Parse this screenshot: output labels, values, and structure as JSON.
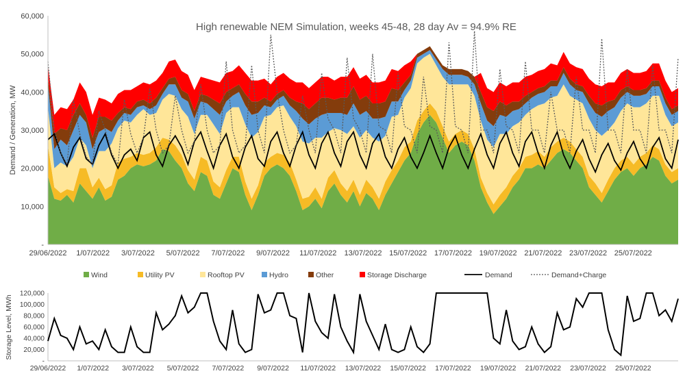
{
  "chart_data": [
    {
      "type": "area",
      "title": "High renewable NEM Simulation, weeks 45-48, 28 day Av = 94.9% RE",
      "ylabel": "Demand / Generation, MW",
      "xlabel": "",
      "ylim": [
        0,
        60000
      ],
      "yticks": [
        "-",
        "10,000",
        "20,000",
        "30,000",
        "40,000",
        "50,000",
        "60,000"
      ],
      "xticks": [
        "29/06/2022",
        "1/07/2022",
        "3/07/2022",
        "5/07/2022",
        "7/07/2022",
        "9/07/2022",
        "11/07/2022",
        "13/07/2022",
        "15/07/2022",
        "17/07/2022",
        "19/07/2022",
        "21/07/2022",
        "23/07/2022",
        "25/07/2022"
      ],
      "legend_position": "bottom",
      "grid": false,
      "series": [
        {
          "name": "Wind",
          "color": "#70ad47",
          "kind": "stacked-area",
          "values": [
            18000,
            12000,
            11500,
            13000,
            11000,
            16000,
            14000,
            12000,
            15000,
            11500,
            12500,
            17000,
            18000,
            20000,
            21000,
            20500,
            21000,
            22000,
            25000,
            24500,
            22000,
            20000,
            16000,
            14000,
            19000,
            18000,
            13000,
            12000,
            16000,
            20000,
            19000,
            13000,
            9000,
            13000,
            18000,
            20000,
            21000,
            20000,
            18000,
            14000,
            9000,
            10000,
            12000,
            9500,
            14000,
            16000,
            13000,
            11000,
            14000,
            10000,
            13500,
            12000,
            9000,
            13000,
            16000,
            19000,
            22000,
            24000,
            29000,
            32000,
            34000,
            32000,
            28000,
            24000,
            26000,
            27000,
            26000,
            22000,
            15000,
            11000,
            8000,
            10000,
            12000,
            15000,
            17000,
            20000,
            20000,
            21000,
            20000,
            22000,
            24000,
            25000,
            24000,
            22000,
            20000,
            15000,
            13000,
            11000,
            14000,
            17000,
            19000,
            20000,
            18000,
            20000,
            21000,
            23000,
            22000,
            18000,
            16000,
            17000
          ]
        },
        {
          "name": "Utility PV",
          "color": "#f6bb26",
          "kind": "stacked-area",
          "values": [
            8000,
            3000,
            2000,
            1500,
            3000,
            4000,
            6000,
            3000,
            2500,
            3000,
            3000,
            4500,
            4500,
            3000,
            3000,
            3000,
            3000,
            3500,
            3000,
            3000,
            4000,
            3500,
            3500,
            3000,
            4000,
            4000,
            3500,
            3000,
            3500,
            3000,
            4000,
            3500,
            3000,
            2500,
            3500,
            3000,
            3000,
            3500,
            3500,
            3000,
            3000,
            2500,
            3000,
            2500,
            3500,
            3500,
            3000,
            3000,
            3000,
            3000,
            3500,
            3000,
            3000,
            3500,
            3500,
            3000,
            3500,
            3000,
            3500,
            3000,
            3000,
            3000,
            3000,
            3000,
            3000,
            3000,
            3000,
            3000,
            2500,
            2500,
            2500,
            3000,
            3000,
            3000,
            3000,
            3000,
            3500,
            3500,
            3000,
            3500,
            3000,
            3000,
            3000,
            3000,
            3000,
            3000,
            3000,
            2500,
            3000,
            3000,
            3000,
            3000,
            3000,
            3000,
            3000,
            3000,
            3000,
            3000,
            3000,
            3000
          ]
        },
        {
          "name": "Rooftop PV",
          "color": "#ffe699",
          "kind": "stacked-area",
          "values": [
            10000,
            5000,
            8000,
            6000,
            9000,
            8000,
            6000,
            5000,
            7000,
            10000,
            11000,
            9000,
            10000,
            9000,
            10000,
            12000,
            10000,
            9000,
            10000,
            12000,
            13000,
            12000,
            14000,
            12000,
            11000,
            12000,
            15000,
            14000,
            15000,
            13000,
            13000,
            15000,
            16000,
            14000,
            12000,
            11000,
            12000,
            13000,
            12000,
            14000,
            15000,
            14000,
            13000,
            16000,
            12000,
            11000,
            14000,
            15000,
            14000,
            15000,
            13000,
            13000,
            15000,
            12000,
            14000,
            12000,
            13000,
            14000,
            15000,
            14000,
            13000,
            12000,
            13000,
            15000,
            13000,
            12000,
            13000,
            14000,
            15000,
            14000,
            15000,
            16000,
            14000,
            13000,
            12000,
            11000,
            12000,
            12000,
            14000,
            13000,
            12000,
            14000,
            12000,
            13000,
            14000,
            15000,
            14000,
            15000,
            13000,
            12000,
            13000,
            14000,
            15000,
            13000,
            13000,
            13000,
            14000,
            13000,
            12000,
            12000
          ]
        },
        {
          "name": "Hydro",
          "color": "#5b9bd5",
          "kind": "stacked-area",
          "values": [
            6000,
            5000,
            6000,
            5500,
            7000,
            6000,
            6000,
            5000,
            5000,
            6000,
            3000,
            2000,
            2000,
            2000,
            2000,
            1000,
            1500,
            2000,
            1500,
            2500,
            3000,
            3000,
            4000,
            4000,
            3500,
            3000,
            4000,
            5000,
            3000,
            3000,
            4000,
            5000,
            6000,
            5000,
            3000,
            2000,
            2000,
            2500,
            3000,
            4000,
            6000,
            5000,
            5000,
            6000,
            5000,
            4000,
            4500,
            5000,
            6000,
            6000,
            5000,
            5000,
            6000,
            5000,
            4000,
            3500,
            2000,
            2000,
            1500,
            1000,
            1000,
            1500,
            2000,
            2500,
            2500,
            2500,
            2000,
            3000,
            4500,
            5000,
            5500,
            5000,
            4500,
            4000,
            3500,
            3000,
            3000,
            3000,
            3000,
            3000,
            2500,
            3000,
            3000,
            2500,
            3000,
            4000,
            4500,
            5000,
            5000,
            4000,
            3500,
            3000,
            3000,
            3000,
            2500,
            2500,
            2500,
            3000,
            3000,
            3000
          ]
        },
        {
          "name": "Other",
          "color": "#843c0c",
          "kind": "stacked-area",
          "values": [
            2000,
            4000,
            3000,
            4000,
            4000,
            3000,
            2000,
            3000,
            4000,
            3000,
            3000,
            2000,
            1500,
            1500,
            1500,
            1500,
            1500,
            2000,
            1500,
            1500,
            2000,
            2000,
            2000,
            2000,
            2000,
            2000,
            2500,
            3000,
            2500,
            2000,
            2000,
            3000,
            3500,
            3000,
            2000,
            1500,
            1500,
            1500,
            2000,
            2500,
            4000,
            4000,
            4000,
            4500,
            4000,
            3500,
            4000,
            4500,
            4500,
            4000,
            4000,
            4000,
            4000,
            4000,
            3500,
            3000,
            2000,
            1500,
            1000,
            1000,
            1000,
            1000,
            1000,
            1500,
            1500,
            1500,
            1500,
            2000,
            3000,
            3500,
            4000,
            3500,
            3000,
            2500,
            2000,
            2000,
            1500,
            1500,
            1500,
            1500,
            1500,
            1500,
            1500,
            1500,
            1500,
            2000,
            2500,
            3000,
            2500,
            2000,
            2000,
            1500,
            1500,
            1500,
            1500,
            1500,
            1500,
            1500,
            1500,
            1500
          ]
        },
        {
          "name": "Storage Discharge",
          "color": "#ff0000",
          "kind": "stacked-area",
          "values": [
            3000,
            5000,
            5500,
            5500,
            4000,
            5500,
            6000,
            6000,
            5000,
            4500,
            4500,
            5000,
            4500,
            5000,
            4000,
            4500,
            5000,
            4500,
            4000,
            4500,
            4500,
            5000,
            5000,
            5500,
            4500,
            4500,
            5000,
            5500,
            5000,
            4500,
            5000,
            5500,
            5500,
            5500,
            5000,
            4500,
            4500,
            4500,
            5000,
            5000,
            5500,
            5500,
            5500,
            5500,
            5500,
            5000,
            5500,
            5500,
            5000,
            5500,
            5500,
            5500,
            5500,
            5500,
            5000,
            5000,
            4500,
            3500,
            0,
            0,
            0,
            0,
            0,
            0,
            0,
            0,
            0,
            0,
            5000,
            5000,
            5000,
            5000,
            5000,
            5000,
            5000,
            5000,
            4500,
            4500,
            4500,
            4500,
            4000,
            4000,
            4000,
            4500,
            4500,
            4500,
            5000,
            5000,
            5000,
            4500,
            4500,
            4500,
            4500,
            4500,
            4500,
            4500,
            4500,
            4500,
            4500,
            4500
          ]
        },
        {
          "name": "Demand",
          "color": "#000000",
          "kind": "line",
          "values": [
            27500,
            29000,
            24000,
            20500,
            25500,
            28000,
            22500,
            21000,
            26000,
            29000,
            23500,
            20000,
            23500,
            25000,
            22000,
            28000,
            29500,
            23500,
            20500,
            26000,
            28500,
            25500,
            21000,
            27000,
            29500,
            24500,
            20000,
            26000,
            29000,
            23000,
            20000,
            25500,
            28500,
            22500,
            20500,
            27000,
            29500,
            24000,
            20500,
            26000,
            29500,
            23500,
            20000,
            26500,
            29500,
            24000,
            20500,
            27000,
            29500,
            23500,
            20000,
            26500,
            29000,
            23000,
            20000,
            25000,
            28000,
            23000,
            20000,
            24000,
            28500,
            24000,
            20000,
            25500,
            28500,
            23500,
            20000,
            25000,
            29000,
            23500,
            20000,
            26500,
            29500,
            24000,
            20500,
            27000,
            29500,
            24000,
            20000,
            26000,
            29500,
            23500,
            20000,
            24500,
            27500,
            22500,
            19000,
            23500,
            26500,
            22000,
            19500,
            24000,
            27000,
            22500,
            20000,
            25500,
            28000,
            22500,
            20000,
            27500
          ]
        },
        {
          "name": "Demand+Charge",
          "color": "#595959",
          "kind": "dotted-line",
          "values": [
            48000,
            30000,
            24000,
            21000,
            38000,
            29000,
            23000,
            21000,
            35000,
            30000,
            24000,
            21000,
            38000,
            29000,
            24000,
            28000,
            41000,
            30000,
            24000,
            26000,
            39000,
            30000,
            24000,
            27000,
            42000,
            30000,
            24000,
            26000,
            48000,
            30000,
            24000,
            26000,
            47000,
            30000,
            24000,
            55000,
            40000,
            30000,
            24000,
            26000,
            39000,
            30000,
            24000,
            45000,
            33000,
            30000,
            24000,
            49000,
            33000,
            30000,
            24000,
            50000,
            31000,
            30000,
            24000,
            45000,
            31000,
            30000,
            24000,
            44000,
            31000,
            30000,
            24000,
            53000,
            31000,
            30000,
            24000,
            56000,
            30000,
            30000,
            24000,
            46000,
            31000,
            30000,
            24000,
            48000,
            30000,
            30000,
            24000,
            40000,
            30000,
            30000,
            24000,
            44000,
            30000,
            30000,
            24000,
            54000,
            30000,
            30000,
            24000,
            46000,
            30000,
            30000,
            24000,
            47000,
            30000,
            30000,
            24000,
            49000
          ]
        }
      ]
    },
    {
      "type": "line",
      "title": "",
      "ylabel": "Storage Level, MWh",
      "xlabel": "",
      "ylim": [
        0,
        120000
      ],
      "yticks": [
        "-",
        "20,000",
        "40,000",
        "60,000",
        "80,000",
        "100,000",
        "120,000"
      ],
      "xticks": [
        "29/06/2022",
        "1/07/2022",
        "3/07/2022",
        "5/07/2022",
        "7/07/2022",
        "9/07/2022",
        "11/07/2022",
        "13/07/2022",
        "15/07/2022",
        "17/07/2022",
        "19/07/2022",
        "21/07/2022",
        "23/07/2022",
        "25/07/2022"
      ],
      "grid": false,
      "series": [
        {
          "name": "Storage Level",
          "color": "#000000",
          "values": [
            35000,
            75000,
            45000,
            40000,
            20000,
            60000,
            30000,
            35000,
            20000,
            55000,
            25000,
            15000,
            15000,
            60000,
            25000,
            15000,
            15000,
            85000,
            55000,
            65000,
            80000,
            115000,
            85000,
            95000,
            120000,
            120000,
            70000,
            35000,
            20000,
            90000,
            30000,
            15000,
            20000,
            118000,
            85000,
            90000,
            120000,
            120000,
            80000,
            75000,
            15000,
            120000,
            70000,
            50000,
            40000,
            118000,
            60000,
            35000,
            15000,
            118000,
            70000,
            45000,
            20000,
            65000,
            20000,
            15000,
            20000,
            60000,
            25000,
            15000,
            30000,
            120000,
            120000,
            120000,
            120000,
            120000,
            120000,
            120000,
            120000,
            120000,
            40000,
            30000,
            90000,
            35000,
            20000,
            25000,
            60000,
            30000,
            15000,
            25000,
            85000,
            55000,
            60000,
            110000,
            95000,
            120000,
            120000,
            120000,
            55000,
            20000,
            10000,
            115000,
            70000,
            75000,
            120000,
            120000,
            80000,
            90000,
            70000,
            110000
          ]
        }
      ]
    }
  ]
}
